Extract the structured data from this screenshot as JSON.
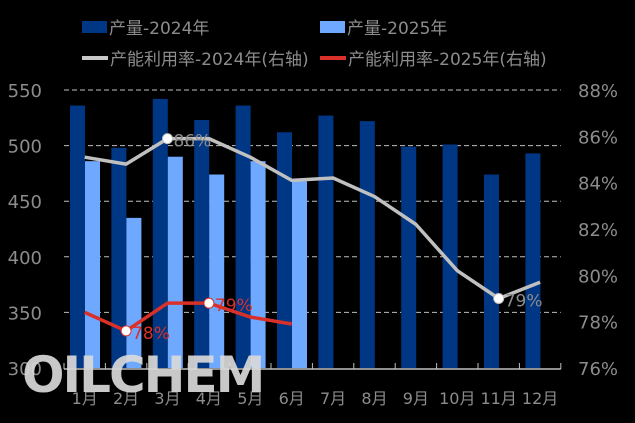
{
  "chart_data": {
    "type": "bar+line",
    "title": "",
    "categories": [
      "1月",
      "2月",
      "3月",
      "4月",
      "5月",
      "6月",
      "7月",
      "8月",
      "9月",
      "10月",
      "11月",
      "12月"
    ],
    "series": [
      {
        "name": "产量-2024年",
        "type": "bar",
        "axis": "left",
        "color": "#003785",
        "values": [
          536,
          498,
          542,
          523,
          536,
          512,
          527,
          522,
          499,
          501,
          474,
          493
        ]
      },
      {
        "name": "产量-2025年",
        "type": "bar",
        "axis": "left",
        "color": "#6fa8ff",
        "values": [
          486,
          435,
          490,
          474,
          486,
          468,
          null,
          null,
          null,
          null,
          null,
          null
        ]
      },
      {
        "name": "产能利用率-2024年(右轴)",
        "type": "line",
        "axis": "right",
        "color": "#c0c0c0",
        "values": [
          85.1,
          84.8,
          85.9,
          85.9,
          85.1,
          84.1,
          84.2,
          83.4,
          82.2,
          80.2,
          79.0,
          79.7
        ],
        "labels": [
          {
            "index": 2,
            "text": "86%"
          },
          {
            "index": 10,
            "text": "79%"
          }
        ]
      },
      {
        "name": "产能利用率-2025年(右轴)",
        "type": "line",
        "axis": "right",
        "color": "#d9302a",
        "values": [
          78.4,
          77.6,
          78.8,
          78.8,
          78.2,
          77.9,
          null,
          null,
          null,
          null,
          null,
          null
        ],
        "labels": [
          {
            "index": 1,
            "text": "78%"
          },
          {
            "index": 3,
            "text": "79%"
          }
        ]
      }
    ],
    "left_axis": {
      "ylim": [
        300,
        550
      ],
      "ticks": [
        300,
        350,
        400,
        450,
        500,
        550
      ]
    },
    "right_axis": {
      "ylim": [
        76,
        88
      ],
      "ticks": [
        "76%",
        "78%",
        "80%",
        "82%",
        "84%",
        "86%",
        "88%"
      ]
    },
    "grid": "dashed horizontal",
    "legend_position": "top",
    "xlabel": "",
    "ylabel": ""
  },
  "legend": {
    "items": [
      {
        "label": "产量-2024年",
        "color": "#003785",
        "kind": "bar"
      },
      {
        "label": "产量-2025年",
        "color": "#6fa8ff",
        "kind": "bar"
      },
      {
        "label": "产能利用率-2024年(右轴)",
        "color": "#c8c8c8",
        "kind": "line"
      },
      {
        "label": "产能利用率-2025年(右轴)",
        "color": "#d9302a",
        "kind": "line"
      }
    ]
  },
  "watermark": "OILCHEM"
}
